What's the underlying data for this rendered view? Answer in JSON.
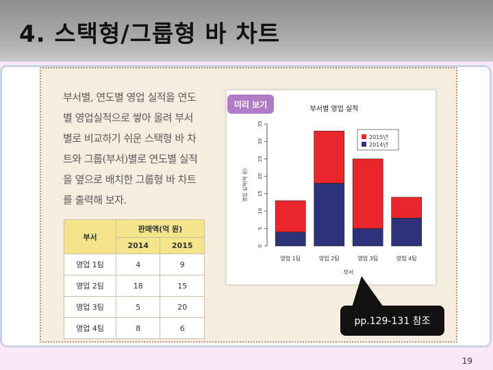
{
  "slide": {
    "title": "4. 스택형/그룹형 바 차트",
    "description_lines": [
      "부서별, 연도별 영업 실적을 연도",
      "별 영업실적으로 쌓아 올려 부서",
      "별로 비교하기 쉬운 스택형 바 차",
      "트와 그룹(부서)별로 연도별 실적",
      "을 옆으로 배치한 그룹형 바 차트",
      "를 출력해 보자."
    ],
    "preview_tag": "미리 보기",
    "callout": "pp.129-131 참조",
    "page_number": "19"
  },
  "table": {
    "dept_header": "부서",
    "sales_header": "판매액(억 원)",
    "year_headers": [
      "2014",
      "2015"
    ],
    "rows": [
      {
        "dept": "영업 1팀",
        "y2014": "4",
        "y2015": "9"
      },
      {
        "dept": "영업 2팀",
        "y2014": "18",
        "y2015": "15"
      },
      {
        "dept": "영업 3팀",
        "y2014": "5",
        "y2015": "20"
      },
      {
        "dept": "영업 4팀",
        "y2014": "8",
        "y2015": "6"
      }
    ]
  },
  "chart_data": {
    "type": "bar",
    "stacked": true,
    "title": "부서별 영업 실적",
    "xlabel": "부서",
    "ylabel": "영업 실적(억 원)",
    "categories": [
      "영업 1팀",
      "영업 2팀",
      "영업 3팀",
      "영업 4팀"
    ],
    "series": [
      {
        "name": "2014년",
        "values": [
          4,
          18,
          5,
          8
        ],
        "color": "#2e3278"
      },
      {
        "name": "2015년",
        "values": [
          9,
          15,
          20,
          6
        ],
        "color": "#e8262c"
      }
    ],
    "ylim": [
      0,
      35
    ],
    "yticks": [
      0,
      5,
      10,
      15,
      20,
      25,
      30,
      35
    ],
    "legend_position": "top-right",
    "legend_order": [
      "2015년",
      "2014년"
    ],
    "grid": false
  }
}
